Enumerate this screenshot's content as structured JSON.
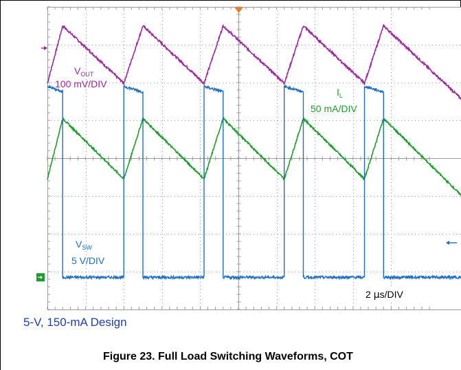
{
  "colors": {
    "vout": "#9b2a9b",
    "il": "#1e9b2e",
    "vsw": "#1f6fc0",
    "trigger": "#f07a1e",
    "ground_marker": "#1e9b2e",
    "grid": "#9a9a9a",
    "caption": "#1f3fa8"
  },
  "chart_data": {
    "type": "line",
    "instrument": "oscilloscope",
    "time_scale": "2 μs/DIV",
    "x_divisions": 10,
    "y_divisions": 8,
    "x_unit": "μs",
    "xlim": [
      0,
      20
    ],
    "switching_period_us": 4.2,
    "series": [
      {
        "name_main": "V",
        "name_sub": "OUT",
        "scale": "100 mV/DIV",
        "shape": "sawtooth",
        "peak_times_us": [
          0.8,
          5.0,
          9.2,
          13.4,
          17.6
        ],
        "valley_times_us": [
          4.0,
          8.2,
          12.4,
          16.6
        ],
        "peak_div": 7.5,
        "valley_div": 5.98
      },
      {
        "name_main": "I",
        "name_sub": "L",
        "scale": "50 mA/DIV",
        "shape": "triangle",
        "peak_times_us": [
          0.8,
          5.0,
          9.2,
          13.4,
          17.6
        ],
        "valley_times_us": [
          4.0,
          8.2,
          12.4,
          16.6
        ],
        "peak_div": 5.05,
        "valley_div": 3.45
      },
      {
        "name_main": "V",
        "name_sub": "SW",
        "scale": "5 V/DIV",
        "shape": "pulse",
        "high_intervals_us": [
          [
            -0.1,
            0.8
          ],
          [
            4.0,
            5.0
          ],
          [
            8.2,
            9.2
          ],
          [
            12.4,
            13.4
          ],
          [
            16.6,
            17.6
          ]
        ],
        "high_div": 5.9,
        "low_div": 0.85
      }
    ]
  },
  "labels": {
    "vout_main": "V",
    "vout_sub": "OUT",
    "vout_scale": "100 mV/DIV",
    "il_main": "I",
    "il_sub": "L",
    "il_scale": "50 mA/DIV",
    "vsw_main": "V",
    "vsw_sub": "SW",
    "vsw_scale": "5 V/DIV",
    "time_scale_prefix": "2 ",
    "time_scale_mu": "μ",
    "time_scale_suffix": "s/DIV"
  },
  "caption": "5-V, 150-mA Design",
  "figure_title": "Figure 23. Full Load Switching Waveforms, COT"
}
